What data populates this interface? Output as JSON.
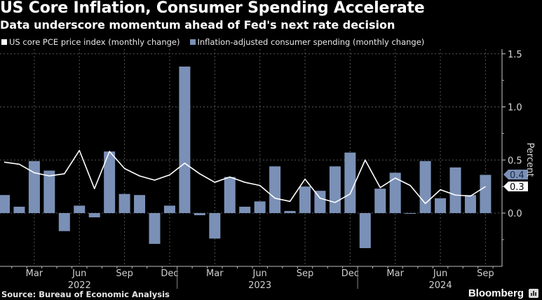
{
  "title": "US Core Inflation, Consumer Spending Accelerate",
  "subtitle": "Data underscore momentum ahead of Fed's next rate decision",
  "source": "Source: Bureau of Economic Analysis",
  "brand": "Bloomberg",
  "colors": {
    "line": "#ffffff",
    "bar": "#7b90b6",
    "background": "#000000"
  },
  "chart_data": {
    "type": "bar",
    "title": "US Core Inflation, Consumer Spending Accelerate",
    "subtitle": "Data underscore momentum ahead of Fed's next rate decision",
    "xlabel": "",
    "ylabel": "Percent",
    "ylim": [
      -0.5,
      1.55
    ],
    "yticks": [
      "0.0",
      "0.5",
      "1.0",
      "1.5"
    ],
    "ytick_values": [
      0.0,
      0.5,
      1.0,
      1.5
    ],
    "grid": true,
    "legend_position": "top-left",
    "y_axis_side": "right",
    "categories": [
      "Jan 2022",
      "Feb 2022",
      "Mar 2022",
      "Apr 2022",
      "May 2022",
      "Jun 2022",
      "Jul 2022",
      "Aug 2022",
      "Sep 2022",
      "Oct 2022",
      "Nov 2022",
      "Dec 2022",
      "Jan 2023",
      "Feb 2023",
      "Mar 2023",
      "Apr 2023",
      "May 2023",
      "Jun 2023",
      "Jul 2023",
      "Aug 2023",
      "Sep 2023",
      "Oct 2023",
      "Nov 2023",
      "Dec 2023",
      "Jan 2024",
      "Feb 2024",
      "Mar 2024",
      "Apr 2024",
      "May 2024",
      "Jun 2024",
      "Jul 2024",
      "Aug 2024",
      "Sep 2024"
    ],
    "x_tick_labels": [
      {
        "label": "Mar",
        "index": 2
      },
      {
        "label": "Jun",
        "index": 5
      },
      {
        "label": "Sep",
        "index": 8
      },
      {
        "label": "Dec",
        "index": 11
      },
      {
        "label": "Mar",
        "index": 14
      },
      {
        "label": "Jun",
        "index": 17
      },
      {
        "label": "Sep",
        "index": 20
      },
      {
        "label": "Dec",
        "index": 23
      },
      {
        "label": "Mar",
        "index": 26
      },
      {
        "label": "Jun",
        "index": 29
      },
      {
        "label": "Sep",
        "index": 32
      }
    ],
    "year_labels": [
      {
        "label": "2022",
        "index": 5
      },
      {
        "label": "2023",
        "index": 17
      },
      {
        "label": "2024",
        "index": 29
      }
    ],
    "series": [
      {
        "name": "US core PCE price index (monthly change)",
        "kind": "line",
        "color": "#ffffff",
        "values": [
          0.48,
          0.46,
          0.38,
          0.35,
          0.37,
          0.59,
          0.23,
          0.58,
          0.42,
          0.35,
          0.31,
          0.36,
          0.47,
          0.37,
          0.29,
          0.34,
          0.29,
          0.26,
          0.14,
          0.11,
          0.32,
          0.14,
          0.1,
          0.18,
          0.5,
          0.24,
          0.33,
          0.26,
          0.09,
          0.22,
          0.17,
          0.16,
          0.25
        ],
        "last_label": "0.3"
      },
      {
        "name": "Inflation-adjusted consumer spending (monthly change)",
        "kind": "bar",
        "color": "#7b90b6",
        "values": [
          0.17,
          0.06,
          0.49,
          0.4,
          -0.17,
          0.07,
          -0.04,
          0.58,
          0.18,
          0.17,
          -0.29,
          0.07,
          1.38,
          -0.02,
          -0.24,
          0.34,
          0.06,
          0.11,
          0.44,
          0.02,
          0.25,
          0.21,
          0.44,
          0.57,
          -0.33,
          0.23,
          0.38,
          0.0,
          0.49,
          0.14,
          0.43,
          0.17,
          0.36
        ],
        "last_label": "0.4"
      }
    ]
  }
}
